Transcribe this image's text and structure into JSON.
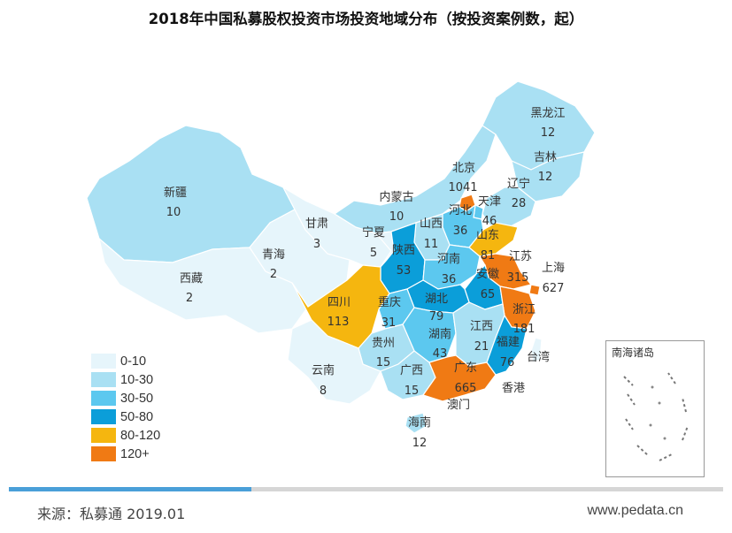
{
  "title": "2018年中国私募股权投资市场投资地域分布（按投资案例数，起）",
  "legend": {
    "items": [
      {
        "label": "0-10",
        "color": "#e6f5fb"
      },
      {
        "label": "10-30",
        "color": "#a9e0f3"
      },
      {
        "label": "30-50",
        "color": "#5cc8ef"
      },
      {
        "label": "50-80",
        "color": "#0b9ed9"
      },
      {
        "label": "80-120",
        "color": "#f5b60f"
      },
      {
        "label": "120+",
        "color": "#f07a14"
      }
    ]
  },
  "provinces": [
    {
      "id": "xinjiang",
      "name": "新疆",
      "value": "10",
      "color": "#a9e0f3"
    },
    {
      "id": "xizang",
      "name": "西藏",
      "value": "2",
      "color": "#e6f5fb"
    },
    {
      "id": "qinghai",
      "name": "青海",
      "value": "2",
      "color": "#e6f5fb"
    },
    {
      "id": "gansu",
      "name": "甘肃",
      "value": "3",
      "color": "#e6f5fb"
    },
    {
      "id": "neimenggu",
      "name": "内蒙古",
      "value": "10",
      "color": "#a9e0f3"
    },
    {
      "id": "heilongjiang",
      "name": "黑龙江",
      "value": "12",
      "color": "#a9e0f3"
    },
    {
      "id": "jilin",
      "name": "吉林",
      "value": "12",
      "color": "#a9e0f3"
    },
    {
      "id": "liaoning",
      "name": "辽宁",
      "value": "28",
      "color": "#a9e0f3"
    },
    {
      "id": "beijing",
      "name": "北京",
      "value": "1041",
      "color": "#f07a14"
    },
    {
      "id": "tianjin",
      "name": "天津",
      "value": "46",
      "color": "#5cc8ef"
    },
    {
      "id": "hebei",
      "name": "河北",
      "value": "36",
      "color": "#5cc8ef"
    },
    {
      "id": "shanxi",
      "name": "山西",
      "value": "11",
      "color": "#a9e0f3"
    },
    {
      "id": "ningxia",
      "name": "宁夏",
      "value": "5",
      "color": "#e6f5fb"
    },
    {
      "id": "shaanxi",
      "name": "陕西",
      "value": "53",
      "color": "#0b9ed9"
    },
    {
      "id": "shandong",
      "name": "山东",
      "value": "81",
      "color": "#f5b60f"
    },
    {
      "id": "henan",
      "name": "河南",
      "value": "36",
      "color": "#5cc8ef"
    },
    {
      "id": "jiangsu",
      "name": "江苏",
      "value": "315",
      "color": "#f07a14"
    },
    {
      "id": "shanghai",
      "name": "上海",
      "value": "627",
      "color": "#f07a14"
    },
    {
      "id": "anhui",
      "name": "安徽",
      "value": "65",
      "color": "#0b9ed9"
    },
    {
      "id": "hubei",
      "name": "湖北",
      "value": "79",
      "color": "#0b9ed9"
    },
    {
      "id": "zhejiang",
      "name": "浙江",
      "value": "181",
      "color": "#f07a14"
    },
    {
      "id": "sichuan",
      "name": "四川",
      "value": "113",
      "color": "#f5b60f"
    },
    {
      "id": "chongqing",
      "name": "重庆",
      "value": "31",
      "color": "#5cc8ef"
    },
    {
      "id": "hunan",
      "name": "湖南",
      "value": "43",
      "color": "#5cc8ef"
    },
    {
      "id": "jiangxi",
      "name": "江西",
      "value": "21",
      "color": "#a9e0f3"
    },
    {
      "id": "fujian",
      "name": "福建",
      "value": "76",
      "color": "#0b9ed9"
    },
    {
      "id": "guizhou",
      "name": "贵州",
      "value": "15",
      "color": "#a9e0f3"
    },
    {
      "id": "yunnan",
      "name": "云南",
      "value": "8",
      "color": "#e6f5fb"
    },
    {
      "id": "guangxi",
      "name": "广西",
      "value": "15",
      "color": "#a9e0f3"
    },
    {
      "id": "guangdong",
      "name": "广东",
      "value": "665",
      "color": "#f07a14"
    },
    {
      "id": "hainan",
      "name": "海南",
      "value": "12",
      "color": "#a9e0f3"
    },
    {
      "id": "xianggang",
      "name": "香港",
      "value": "",
      "color": "#e6f5fb"
    },
    {
      "id": "aomen",
      "name": "澳门",
      "value": "",
      "color": "#e6f5fb"
    },
    {
      "id": "taiwan",
      "name": "台湾",
      "value": "",
      "color": "#e6f5fb"
    }
  ],
  "inset_title": "南海诸岛",
  "progress": 0.34,
  "footer": {
    "source": "来源：私募通 2019.01",
    "website": "www.pedata.cn"
  }
}
